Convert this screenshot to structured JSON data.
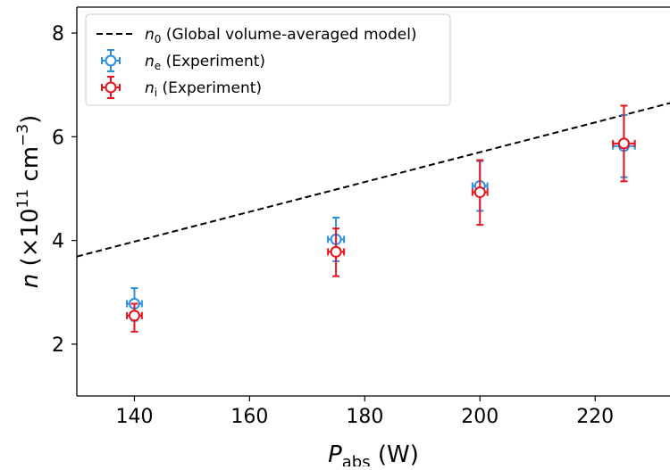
{
  "chart_data": {
    "type": "scatter",
    "xlabel": {
      "main": "P",
      "sub": "abs",
      "rest": " (W)"
    },
    "ylabel": {
      "main": "n",
      "rest1": " (×10",
      "sup1": "11",
      "rest2": " cm",
      "sup2": "−3",
      "rest3": ")"
    },
    "xlim": [
      130,
      233
    ],
    "ylim": [
      1,
      8.5
    ],
    "xticks": [
      140,
      160,
      180,
      200,
      220
    ],
    "yticks": [
      2,
      4,
      6,
      8
    ],
    "grid": false,
    "legend_position": "upper-left",
    "legend": [
      {
        "sym": "n",
        "sub": "0",
        "text": " (Global volume-averaged model)",
        "color": "#000000",
        "style": "dashed-line"
      },
      {
        "sym": "n",
        "sub": "e",
        "text": " (Experiment)",
        "color": "#2b8fe0",
        "style": "errorbar-circle"
      },
      {
        "sym": "n",
        "sub": "i",
        "text": " (Experiment)",
        "color": "#e8141d",
        "style": "errorbar-circle"
      }
    ],
    "series": [
      {
        "key": "n0",
        "type": "line",
        "style": "dashed",
        "color": "#000000",
        "points": [
          {
            "x": 130,
            "y": 3.69
          },
          {
            "x": 233,
            "y": 6.65
          }
        ]
      },
      {
        "key": "ne",
        "type": "errorbar",
        "color": "#2b8fe0",
        "points": [
          {
            "x": 140,
            "y": 2.78,
            "yerr_low": 0.33,
            "yerr_high": 0.3,
            "xerr": 1.3
          },
          {
            "x": 175,
            "y": 4.02,
            "yerr_low": 0.42,
            "yerr_high": 0.42,
            "xerr": 1.4
          },
          {
            "x": 200,
            "y": 5.05,
            "yerr_low": 0.48,
            "yerr_high": 0.48,
            "xerr": 1.3
          },
          {
            "x": 225,
            "y": 5.82,
            "yerr_low": 0.6,
            "yerr_high": 0.6,
            "xerr": 1.9
          }
        ]
      },
      {
        "key": "ni",
        "type": "errorbar",
        "color": "#e8141d",
        "points": [
          {
            "x": 140,
            "y": 2.55,
            "yerr_low": 0.31,
            "yerr_high": 0.23,
            "xerr": 1.3
          },
          {
            "x": 175,
            "y": 3.78,
            "yerr_low": 0.47,
            "yerr_high": 0.45,
            "xerr": 1.4
          },
          {
            "x": 200,
            "y": 4.93,
            "yerr_low": 0.63,
            "yerr_high": 0.62,
            "xerr": 1.3
          },
          {
            "x": 225,
            "y": 5.87,
            "yerr_low": 0.73,
            "yerr_high": 0.73,
            "xerr": 1.9
          }
        ]
      }
    ]
  }
}
